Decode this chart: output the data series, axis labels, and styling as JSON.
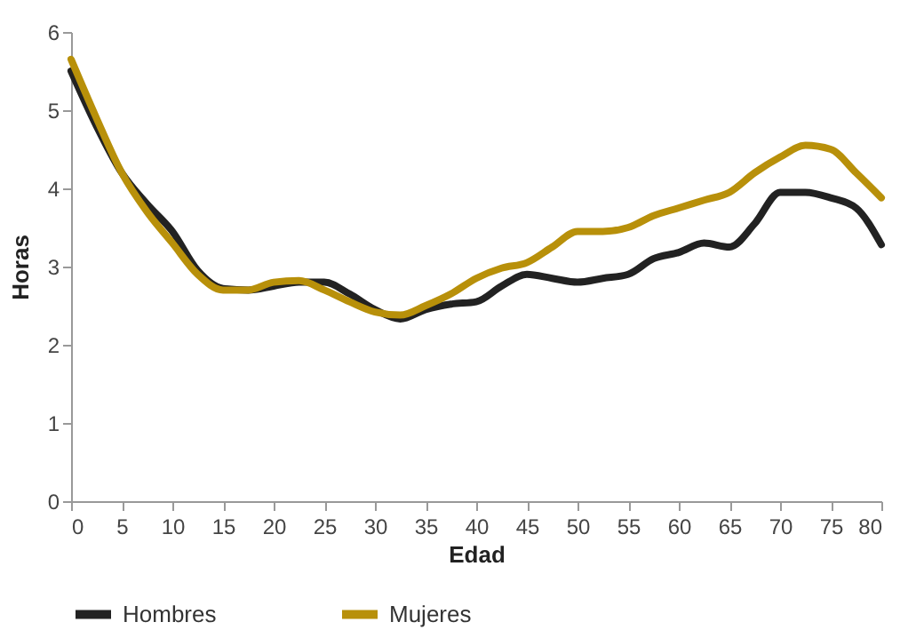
{
  "chart_data": {
    "type": "line",
    "xlabel": "Edad",
    "ylabel": "Horas",
    "x": [
      0,
      2.5,
      5,
      7.5,
      10,
      12.5,
      15,
      17.5,
      20,
      22.5,
      25,
      27.5,
      30,
      32.5,
      35,
      37.5,
      40,
      42.5,
      45,
      47.5,
      50,
      52.5,
      55,
      57.5,
      60,
      62.5,
      65,
      67.5,
      70,
      72.5,
      75,
      77.5,
      80
    ],
    "series": [
      {
        "name": "Hombres",
        "color": "#222222",
        "values": [
          5.5,
          4.8,
          4.2,
          3.8,
          3.45,
          2.95,
          2.72,
          2.7,
          2.75,
          2.8,
          2.8,
          2.65,
          2.45,
          2.33,
          2.45,
          2.52,
          2.55,
          2.75,
          2.9,
          2.85,
          2.8,
          2.85,
          2.9,
          3.1,
          3.18,
          3.3,
          3.25,
          3.55,
          3.95,
          3.95,
          3.88,
          3.75,
          3.28
        ]
      },
      {
        "name": "Mujeres",
        "color": "#b8900a",
        "values": [
          5.65,
          4.9,
          4.2,
          3.7,
          3.3,
          2.9,
          2.7,
          2.7,
          2.8,
          2.82,
          2.7,
          2.55,
          2.42,
          2.38,
          2.5,
          2.65,
          2.85,
          2.98,
          3.05,
          3.25,
          3.45,
          3.45,
          3.5,
          3.65,
          3.75,
          3.85,
          3.95,
          4.2,
          4.4,
          4.55,
          4.5,
          4.2,
          3.88
        ]
      }
    ],
    "xlim": [
      0,
      80
    ],
    "xticks": [
      0,
      5,
      10,
      15,
      20,
      25,
      30,
      35,
      40,
      45,
      50,
      55,
      60,
      65,
      70,
      75,
      80
    ],
    "ylim": [
      0,
      6
    ],
    "yticks": [
      0,
      1,
      2,
      3,
      4,
      5,
      6
    ],
    "grid": false,
    "legend": "bottom",
    "marker": "none",
    "line_style": "solid"
  }
}
